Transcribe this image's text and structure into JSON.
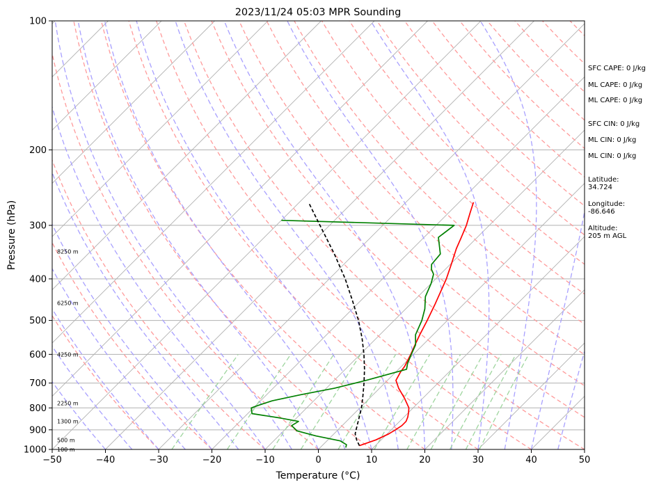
{
  "chart_data": {
    "type": "line",
    "title": "2023/11/24 05:03 MPR Sounding",
    "xlabel": "Temperature (°C)",
    "ylabel": "Pressure (hPa)",
    "xlim": [
      -50,
      50
    ],
    "ylim": [
      1000,
      100
    ],
    "y_scale": "log",
    "skew": true,
    "x_ticks": [
      -50,
      -40,
      -30,
      -20,
      -10,
      0,
      10,
      20,
      30,
      40,
      50
    ],
    "x_tick_labels": [
      "−50",
      "−40",
      "−30",
      "−20",
      "−10",
      "0",
      "10",
      "20",
      "30",
      "40",
      "50"
    ],
    "y_ticks": [
      1000,
      900,
      800,
      700,
      600,
      500,
      400,
      300,
      200,
      100
    ],
    "y_tick_labels": [
      "1000",
      "900",
      "800",
      "700",
      "600",
      "500",
      "400",
      "300",
      "200",
      "100"
    ],
    "grid": true,
    "series": [
      {
        "color": "#ff0000",
        "pressure": [
          980,
          950,
          920,
          900,
          880,
          860,
          840,
          820,
          800,
          760,
          720,
          690,
          660,
          640,
          600,
          570,
          540,
          500,
          460,
          430,
          400,
          370,
          340,
          320,
          300,
          280,
          265
        ],
        "values": [
          7.0,
          9.0,
          10.3,
          10.8,
          11.2,
          11.2,
          10.7,
          10.0,
          9.2,
          6.6,
          3.6,
          1.6,
          0.9,
          0.6,
          -0.5,
          -1.5,
          -2.5,
          -3.8,
          -5.3,
          -6.6,
          -8.0,
          -9.8,
          -11.8,
          -13.0,
          -14.3,
          -16.0,
          -17.3
        ]
      },
      {
        "color": "#008000",
        "pressure": [
          990,
          975,
          955,
          930,
          905,
          880,
          860,
          845,
          825,
          800,
          785,
          770,
          745,
          720,
          690,
          650,
          630,
          600,
          570,
          540,
          500,
          470,
          440,
          410,
          390,
          380,
          370,
          350,
          320,
          300,
          292
        ],
        "values": [
          4.8,
          4.4,
          2.5,
          -3.0,
          -7.5,
          -9.5,
          -9.0,
          -13.0,
          -19.2,
          -20.4,
          -19.2,
          -17.8,
          -13.5,
          -8.5,
          -4.0,
          1.5,
          0.6,
          -0.4,
          -1.4,
          -3.3,
          -4.8,
          -6.4,
          -8.6,
          -10.0,
          -11.3,
          -12.6,
          -13.5,
          -13.8,
          -17.3,
          -16.6,
          -50
        ]
      },
      {
        "color": "#000000",
        "pressure": [
          980,
          950,
          920,
          900,
          850,
          800,
          750,
          700,
          650,
          600,
          550,
          500,
          450,
          400,
          350,
          300,
          265
        ],
        "values": [
          7.0,
          5.4,
          4.0,
          3.4,
          1.9,
          0.3,
          -1.7,
          -3.9,
          -6.4,
          -9.3,
          -12.7,
          -16.7,
          -21.5,
          -27.0,
          -33.7,
          -41.8,
          -48.3
        ]
      }
    ],
    "height_labels": [
      "100 m",
      "500 m",
      "1300 m",
      "2250 m",
      "4250 m",
      "6250 m",
      "8250 m"
    ],
    "height_label_pressure": [
      1000,
      950,
      860,
      780,
      600,
      455,
      345
    ]
  },
  "stats": {
    "sfc_cape": "SFC CAPE: 0 J/kg",
    "ml_cape_1": "ML CAPE: 0 J/kg",
    "ml_cape_2": "ML CAPE: 0 J/kg",
    "sfc_cin": "SFC CIN: 0 J/kg",
    "ml_cin_1": "ML CIN: 0 J/kg",
    "ml_cin_2": "ML CIN: 0 J/kg",
    "latitude_label": "Latitude:",
    "latitude": "34.724",
    "longitude_label": "Longitude:",
    "longitude": "-86.646",
    "altitude_label": "Altitude:",
    "altitude": "205 m AGL"
  }
}
